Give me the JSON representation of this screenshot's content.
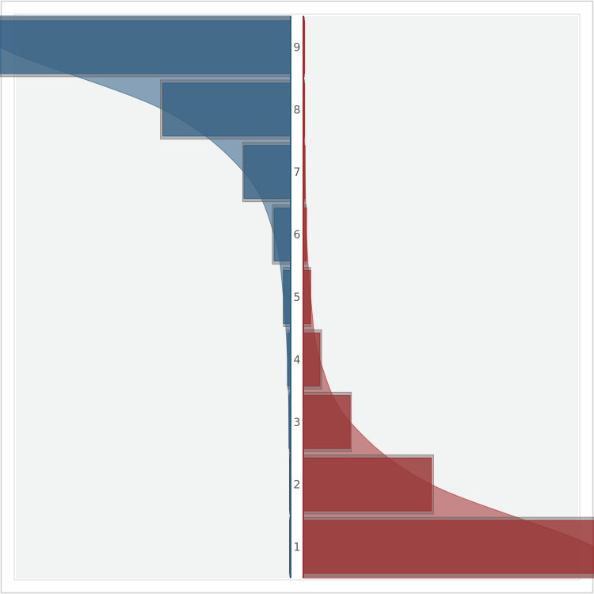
{
  "chart_data": {
    "type": "bar",
    "orientation": "horizontal-diverging",
    "categories": [
      "1",
      "2",
      "3",
      "4",
      "5",
      "6",
      "7",
      "8",
      "9"
    ],
    "series": [
      {
        "side": "left",
        "color": "#2f5f86",
        "values": [
          0.1,
          0.3,
          0.6,
          1.1,
          2.5,
          5.7,
          16.1,
          44.0,
          100.0
        ],
        "bands": [
          0.1,
          0.2,
          0.3,
          1.0,
          2.5,
          6.3,
          16.5,
          44.8,
          100.0
        ]
      },
      {
        "side": "right",
        "color": "#a02e2e",
        "values": [
          100.0,
          44.0,
          16.1,
          5.7,
          2.5,
          1.1,
          0.6,
          0.3,
          0.1
        ],
        "bands": [
          100.0,
          44.8,
          16.5,
          6.3,
          2.5,
          1.0,
          0.3,
          0.2,
          0.1
        ]
      }
    ],
    "xlim": [
      0,
      100
    ],
    "grid": false,
    "legend": "none",
    "colors": {
      "panel": "#f2f3f3",
      "border": "#cfcfcf",
      "band": "#6b6b6b",
      "label": "#555555"
    }
  }
}
